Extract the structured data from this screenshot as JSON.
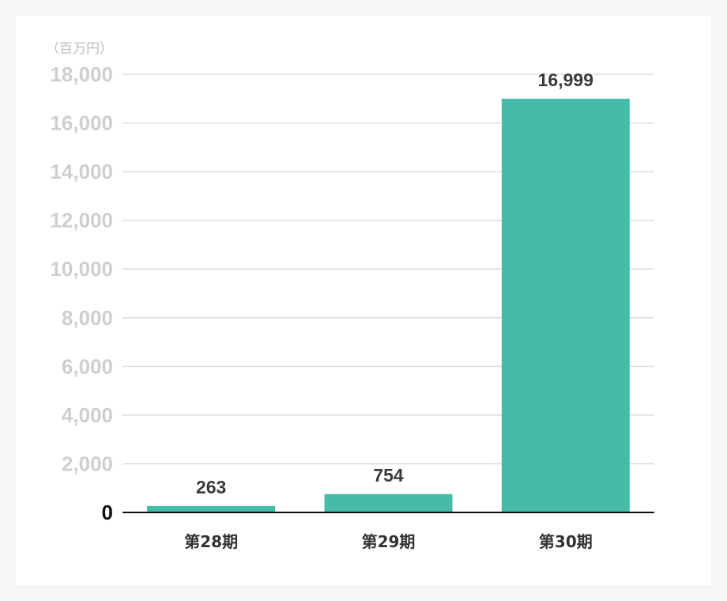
{
  "chart_data": {
    "type": "bar",
    "unit_label": "（百万円）",
    "categories": [
      "第28期",
      "第29期",
      "第30期"
    ],
    "values": [
      263,
      754,
      16999
    ],
    "data_labels": [
      "263",
      "754",
      "16,999"
    ],
    "yticks": [
      0,
      2000,
      4000,
      6000,
      8000,
      10000,
      12000,
      14000,
      16000,
      18000
    ],
    "ytick_labels": [
      "0",
      "2,000",
      "4,000",
      "6,000",
      "8,000",
      "10,000",
      "12,000",
      "14,000",
      "16,000",
      "18,000"
    ],
    "ylim": [
      0,
      18000
    ],
    "grid": true,
    "bar_color": "#45bca8",
    "grid_color": "#dddddd",
    "axis_color": "#111111",
    "tick_color": "#cfcfcf",
    "zero_tick_color": "#111111"
  }
}
